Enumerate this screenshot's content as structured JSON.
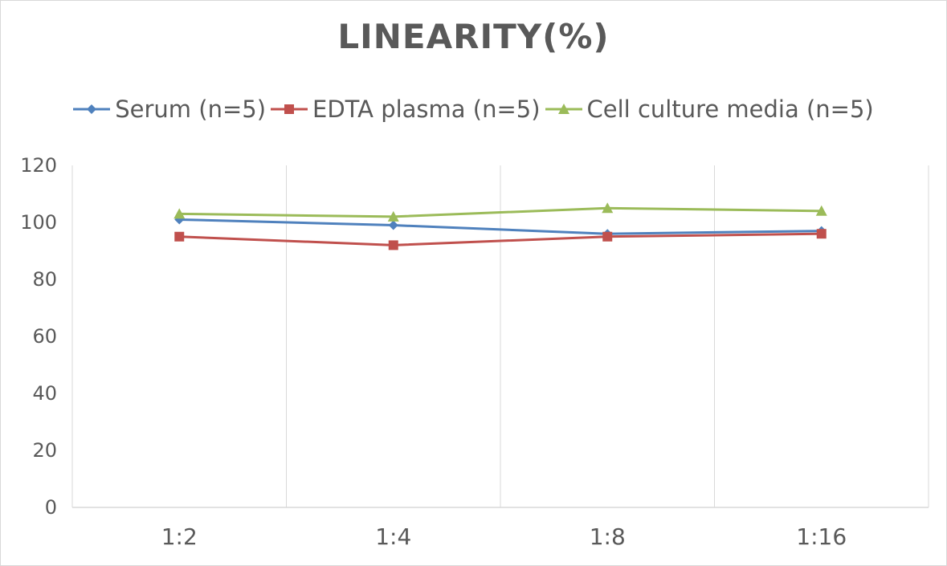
{
  "chart_data": {
    "type": "line",
    "title": "LINEARITY(%)",
    "xlabel": "",
    "ylabel": "",
    "categories": [
      "1:2",
      "1:4",
      "1:8",
      "1:16"
    ],
    "ylim": [
      0,
      120
    ],
    "yticks": [
      0,
      20,
      40,
      60,
      80,
      100,
      120
    ],
    "grid": "vertical",
    "legend_position": "top",
    "series": [
      {
        "name": "Serum (n=5)",
        "values": [
          101,
          99,
          96,
          97
        ],
        "color": "#4f81bd",
        "marker": "diamond"
      },
      {
        "name": "EDTA plasma (n=5)",
        "values": [
          95,
          92,
          95,
          96
        ],
        "color": "#c0504d",
        "marker": "square"
      },
      {
        "name": "Cell culture media (n=5)",
        "values": [
          103,
          102,
          105,
          104
        ],
        "color": "#9bbb59",
        "marker": "triangle"
      }
    ]
  }
}
